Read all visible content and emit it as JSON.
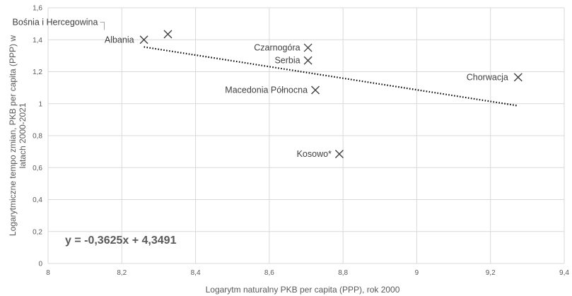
{
  "chart_data": {
    "type": "scatter",
    "xlabel": "Logarytm naturalny PKB per capita (PPP), rok 2000",
    "ylabel": "Logarytmiczne tempo zmian, PKB per capita (PPP) w latach 2000-2021",
    "xlim": [
      8,
      9.4
    ],
    "ylim": [
      0,
      1.6
    ],
    "x_ticks": [
      "8",
      "8,2",
      "8,4",
      "8,6",
      "8,8",
      "9",
      "9,2",
      "9,4"
    ],
    "y_ticks": [
      "0",
      "0,2",
      "0,4",
      "0,6",
      "0,8",
      "1",
      "1,2",
      "1,4",
      "1,6"
    ],
    "grid": "vertical and horizontal",
    "marker": "x",
    "marker_color": "#404040",
    "points": [
      {
        "label": "Albania",
        "x": 8.26,
        "y": 1.4
      },
      {
        "label": "Bośnia i Hercegowina",
        "x": 8.325,
        "y": 1.435
      },
      {
        "label": "Czarnogóra",
        "x": 8.705,
        "y": 1.35
      },
      {
        "label": "Serbia",
        "x": 8.705,
        "y": 1.27
      },
      {
        "label": "Macedonia Północna",
        "x": 8.725,
        "y": 1.085
      },
      {
        "label": "Kosowo*",
        "x": 8.79,
        "y": 0.685
      },
      {
        "label": "Chorwacja",
        "x": 9.275,
        "y": 1.165
      }
    ],
    "trendline": {
      "style": "dotted",
      "slope": -0.3625,
      "intercept": 4.3491,
      "x_range": [
        8.26,
        9.275
      ],
      "equation": "y = -0,3625x + 4,3491"
    }
  }
}
